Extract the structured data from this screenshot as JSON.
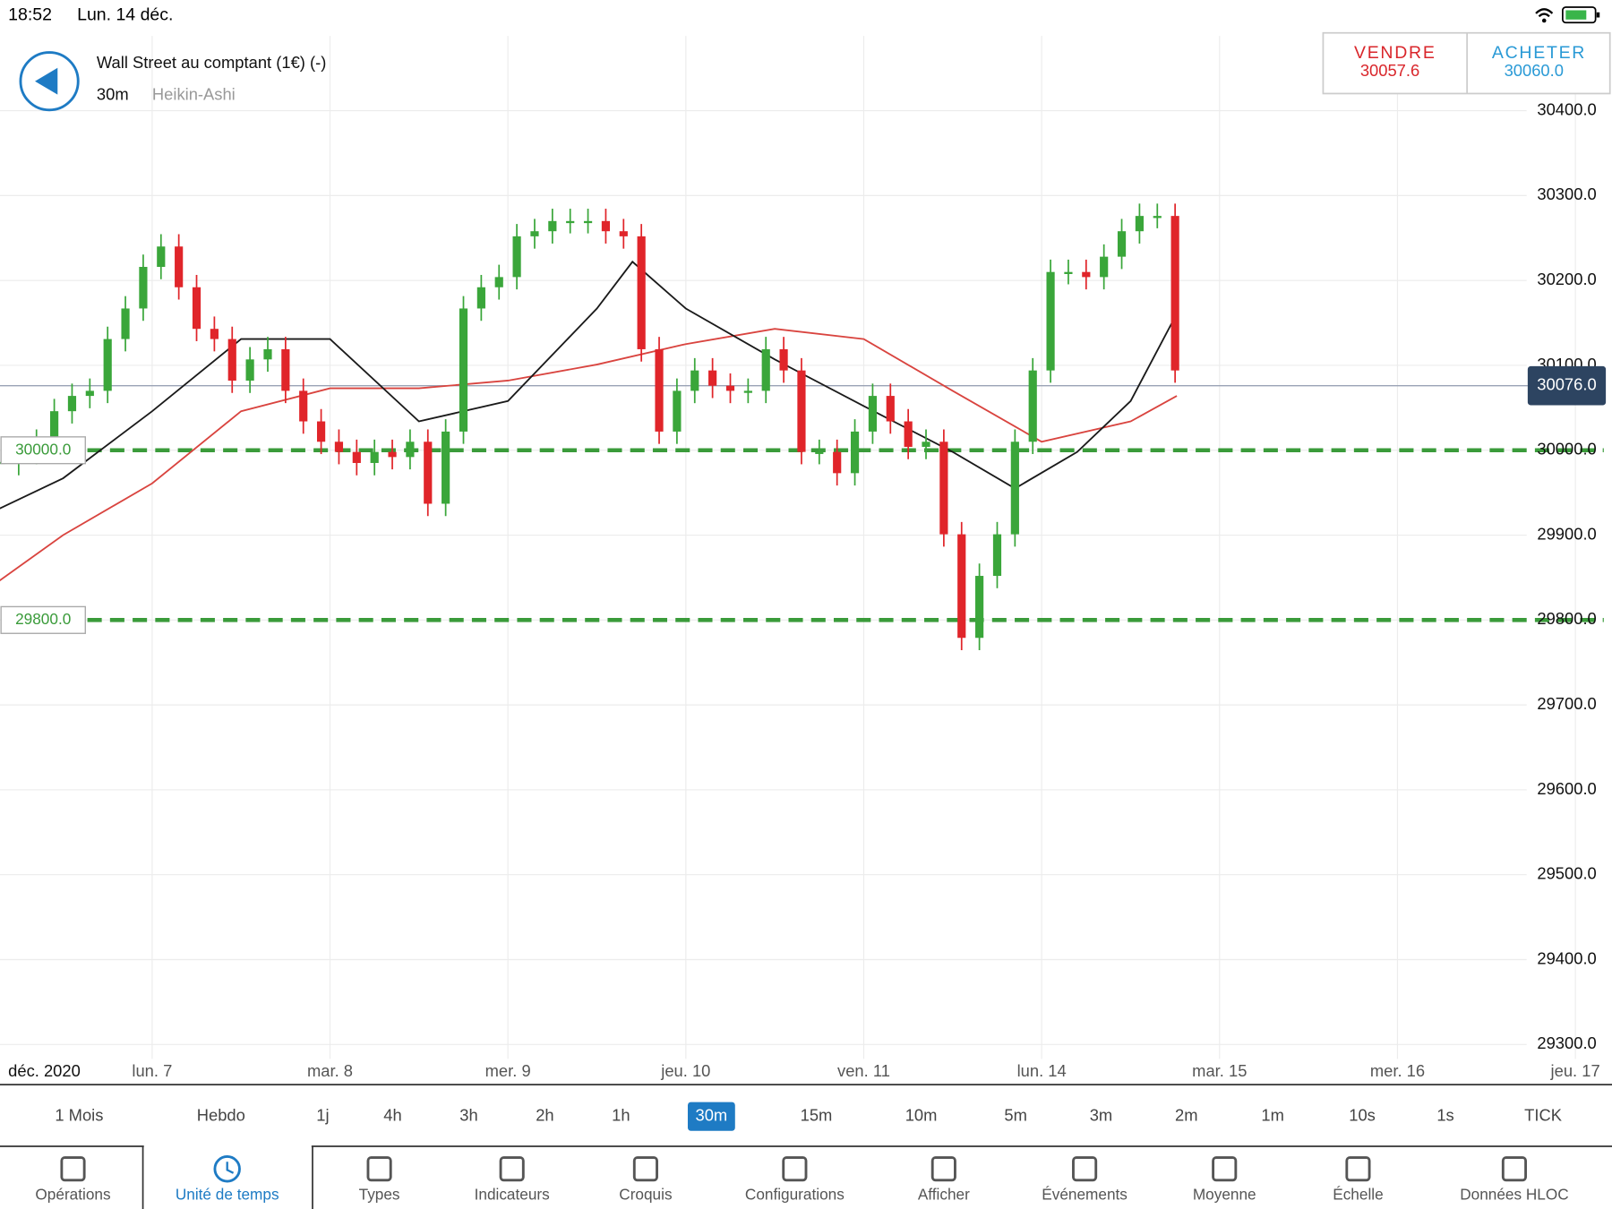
{
  "status_bar": {
    "time": "18:52",
    "date": "Lun. 14 déc."
  },
  "header": {
    "instrument": "Wall Street au comptant (1€) (-)",
    "timeframe": "30m",
    "chart_type": "Heikin-Ashi"
  },
  "quote": {
    "sell_label": "VENDRE",
    "sell_price": "30057.6",
    "buy_label": "ACHETER",
    "buy_price": "30060.0"
  },
  "chart_data": {
    "type": "candlestick",
    "date_label": "déc. 2020",
    "xlim": [
      -0.855,
      8.2
    ],
    "ylim": [
      29283,
      30488
    ],
    "xticks": [
      {
        "value": 0,
        "label": "lun. 7"
      },
      {
        "value": 1,
        "label": "mar. 8"
      },
      {
        "value": 2,
        "label": "mer. 9"
      },
      {
        "value": 3,
        "label": "jeu. 10"
      },
      {
        "value": 4,
        "label": "ven. 11"
      },
      {
        "value": 5,
        "label": "lun. 14"
      },
      {
        "value": 6,
        "label": "mar. 15"
      },
      {
        "value": 7,
        "label": "mer. 16"
      },
      {
        "value": 8,
        "label": "jeu. 17"
      }
    ],
    "yticks": [
      {
        "value": 30400,
        "label": "30400.0"
      },
      {
        "value": 30300,
        "label": "30300.0"
      },
      {
        "value": 30200,
        "label": "30200.0"
      },
      {
        "value": 30100,
        "label": "30100.0"
      },
      {
        "value": 30000,
        "label": "30000.0"
      },
      {
        "value": 29900,
        "label": "29900.0"
      },
      {
        "value": 29800,
        "label": "29800.0"
      },
      {
        "value": 29700,
        "label": "29700.0"
      },
      {
        "value": 29600,
        "label": "29600.0"
      },
      {
        "value": 29500,
        "label": "29500.0"
      },
      {
        "value": 29400,
        "label": "29400.0"
      },
      {
        "value": 29300,
        "label": "29300.0"
      }
    ],
    "grid": true,
    "up_color": "#3aa63a",
    "down_color": "#e0252a",
    "x": [
      -0.85,
      -0.75,
      -0.65,
      -0.55,
      -0.45,
      -0.35,
      -0.25,
      -0.15,
      -0.05,
      0.05,
      0.15,
      0.25,
      0.35,
      0.45,
      0.55,
      0.65,
      0.75,
      0.85,
      0.95,
      1.05,
      1.15,
      1.25,
      1.35,
      1.45,
      1.55,
      1.65,
      1.75,
      1.85,
      1.95,
      2.05,
      2.15,
      2.25,
      2.35,
      2.45,
      2.55,
      2.65,
      2.75,
      2.85,
      2.95,
      3.05,
      3.15,
      3.25,
      3.35,
      3.45,
      3.55,
      3.65,
      3.75,
      3.85,
      3.95,
      4.05,
      4.15,
      4.25,
      4.35,
      4.45,
      4.55,
      4.65,
      4.75,
      4.85,
      4.95,
      5.05,
      5.15,
      5.25,
      5.35,
      5.45,
      5.55,
      5.65,
      5.75
    ],
    "values": [
      29985,
      29998,
      30010,
      30046,
      30064,
      30070,
      30131,
      30167,
      30216,
      30240,
      30192,
      30143,
      30131,
      30082,
      30107,
      30119,
      30070,
      30034,
      30010,
      29998,
      29985,
      29998,
      29992,
      30010,
      29937,
      30022,
      30167,
      30192,
      30204,
      30252,
      30258,
      30270,
      30270,
      30270,
      30258,
      30252,
      30119,
      30022,
      30070,
      30094,
      30076,
      30070,
      30070,
      30119,
      30094,
      29998,
      29998,
      29973,
      30022,
      30064,
      30034,
      30004,
      30010,
      29901,
      29779,
      29852,
      29901,
      30010,
      30094,
      30210,
      30210,
      30204,
      30228,
      30258,
      30276,
      30276,
      30094
    ],
    "series": [
      {
        "color": "#d9443f",
        "x": [
          -0.86,
          -0.5,
          0,
          0.5,
          1.0,
          1.5,
          2.0,
          2.5,
          3.0,
          3.5,
          4.0,
          4.5,
          5.0,
          5.5,
          5.76
        ],
        "values": [
          29846,
          29900,
          29961,
          30046,
          30073,
          30073,
          30082,
          30101,
          30125,
          30143,
          30131,
          30070,
          30010,
          30034,
          30064
        ]
      },
      {
        "color": "#1a1a1a",
        "x": [
          -0.86,
          -0.5,
          0,
          0.5,
          1.0,
          1.5,
          2.0,
          2.5,
          2.7,
          3.0,
          3.5,
          4.0,
          4.5,
          4.85,
          5.2,
          5.5,
          5.76
        ],
        "values": [
          29931,
          29967,
          30046,
          30131,
          30131,
          30034,
          30058,
          30167,
          30222,
          30167,
          30107,
          30052,
          29998,
          29955,
          29998,
          30058,
          30161
        ]
      }
    ],
    "current_price": {
      "value": 30076,
      "label": "30076.0"
    },
    "levels": [
      {
        "value": 30000,
        "label": "30000.0"
      },
      {
        "value": 29800,
        "label": "29800.0"
      }
    ],
    "level_color": "#3a9b3a"
  },
  "timeframes": {
    "items": [
      "1 Mois",
      "Hebdo",
      "1j",
      "4h",
      "3h",
      "2h",
      "1h",
      "30m",
      "15m",
      "10m",
      "5m",
      "3m",
      "2m",
      "1m",
      "10s",
      "1s",
      "TICK"
    ],
    "selected": 7
  },
  "toolbar": {
    "items": [
      "Opérations",
      "Unité de temps",
      "Types",
      "Indicateurs",
      "Croquis",
      "Configurations",
      "Afficher",
      "Événements",
      "Moyenne",
      "Échelle",
      "Données HLOC"
    ],
    "selected": 1
  }
}
